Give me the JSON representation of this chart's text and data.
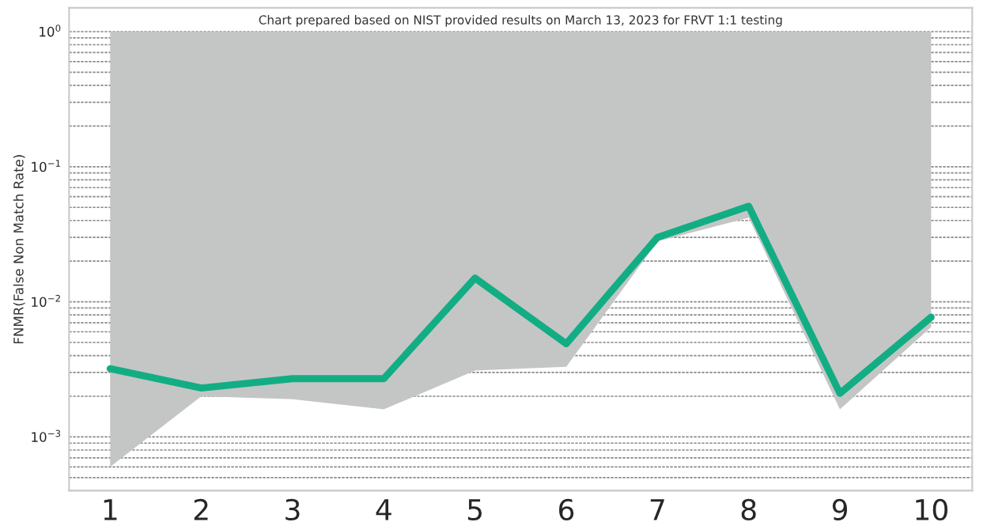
{
  "chart_data": {
    "type": "line",
    "title": "Chart prepared based on NIST provided results on March 13, 2023 for FRVT 1:1 testing",
    "ylabel": "FNMR(False Non Match Rate)",
    "categories": [
      "1",
      "2",
      "3",
      "4",
      "5",
      "6",
      "7",
      "8",
      "9",
      "10"
    ],
    "series": [
      {
        "color": "#13ad84",
        "values": [
          0.0032,
          0.0023,
          0.0027,
          0.0027,
          0.015,
          0.0049,
          0.03,
          0.051,
          0.0021,
          0.0077
        ],
        "lower": [
          0.0006,
          0.002,
          0.0019,
          0.0016,
          0.0031,
          0.0033,
          0.028,
          0.042,
          0.0016,
          0.0065
        ],
        "upper": [
          1,
          1,
          1,
          1,
          1,
          1,
          1,
          1,
          1,
          1
        ]
      }
    ],
    "log": "y",
    "ylim": [
      0.0004,
      1.5
    ],
    "yticks": [
      {
        "value": 0.001,
        "label": "10$^{−3}$"
      },
      {
        "value": 0.01,
        "label": "10$^{−2}$"
      },
      {
        "value": 0.1,
        "label": "10$^{−1}$"
      },
      {
        "value": 1,
        "label": "10$^{0}$"
      }
    ],
    "grid": "y",
    "marker": "none",
    "line_style": "solid",
    "legend": false
  }
}
